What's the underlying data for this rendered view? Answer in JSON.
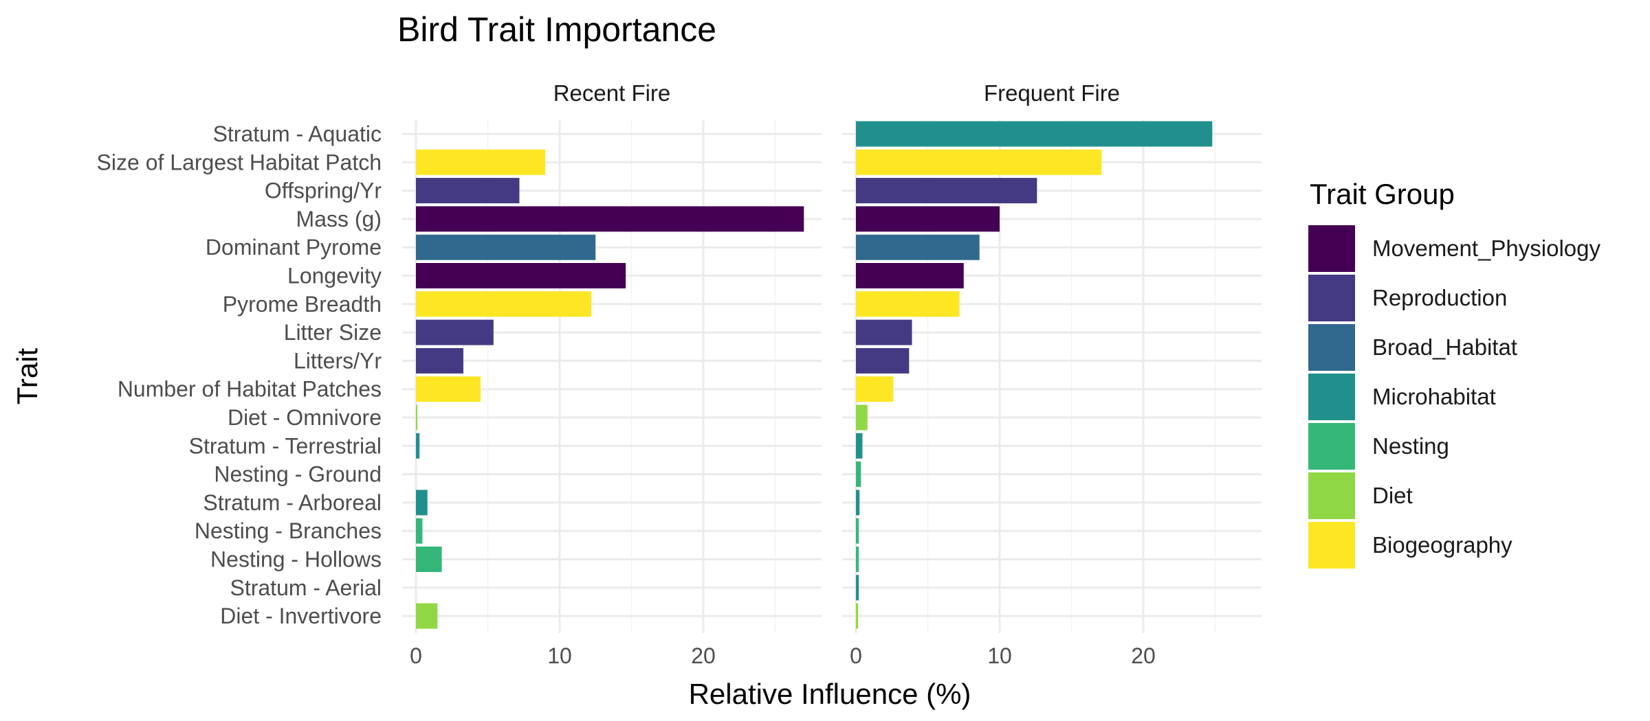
{
  "chart_data": {
    "type": "bar",
    "orientation": "horizontal",
    "title": "Bird Trait Importance",
    "xlabel": "Relative Influence (%)",
    "ylabel": "Trait",
    "xlim": [
      0,
      28
    ],
    "x_ticks": [
      0,
      10,
      20
    ],
    "grid": true,
    "legend_title": "Trait Group",
    "legend_position": "right",
    "groups": [
      {
        "name": "Movement_Physiology",
        "color": "#440154"
      },
      {
        "name": "Reproduction",
        "color": "#443A83"
      },
      {
        "name": "Broad_Habitat",
        "color": "#31688E"
      },
      {
        "name": "Microhabitat",
        "color": "#21908D"
      },
      {
        "name": "Nesting",
        "color": "#35B779"
      },
      {
        "name": "Diet",
        "color": "#8FD744"
      },
      {
        "name": "Biogeography",
        "color": "#FDE725"
      }
    ],
    "categories": [
      "Stratum - Aquatic",
      "Size of Largest Habitat Patch",
      "Offspring/Yr",
      "Mass (g)",
      "Dominant Pyrome",
      "Longevity",
      "Pyrome Breadth",
      "Litter Size",
      "Litters/Yr",
      "Number of Habitat Patches",
      "Diet - Omnivore",
      "Stratum - Terrestrial",
      "Nesting - Ground",
      "Stratum - Arboreal",
      "Nesting - Branches",
      "Nesting - Hollows",
      "Stratum - Aerial",
      "Diet - Invertivore"
    ],
    "category_groups": [
      "Microhabitat",
      "Biogeography",
      "Reproduction",
      "Movement_Physiology",
      "Broad_Habitat",
      "Movement_Physiology",
      "Biogeography",
      "Reproduction",
      "Reproduction",
      "Biogeography",
      "Diet",
      "Microhabitat",
      "Nesting",
      "Microhabitat",
      "Nesting",
      "Nesting",
      "Microhabitat",
      "Diet"
    ],
    "panels": [
      {
        "name": "Recent Fire",
        "values": [
          0,
          9.0,
          7.2,
          27.0,
          12.5,
          14.6,
          12.2,
          5.4,
          3.3,
          4.5,
          0.1,
          0.25,
          0,
          0.8,
          0.45,
          1.8,
          0,
          1.5
        ]
      },
      {
        "name": "Frequent Fire",
        "values": [
          24.8,
          17.1,
          12.6,
          10.0,
          8.6,
          7.5,
          7.2,
          3.9,
          3.7,
          2.6,
          0.8,
          0.45,
          0.35,
          0.25,
          0.2,
          0.2,
          0.2,
          0.15
        ]
      }
    ]
  }
}
